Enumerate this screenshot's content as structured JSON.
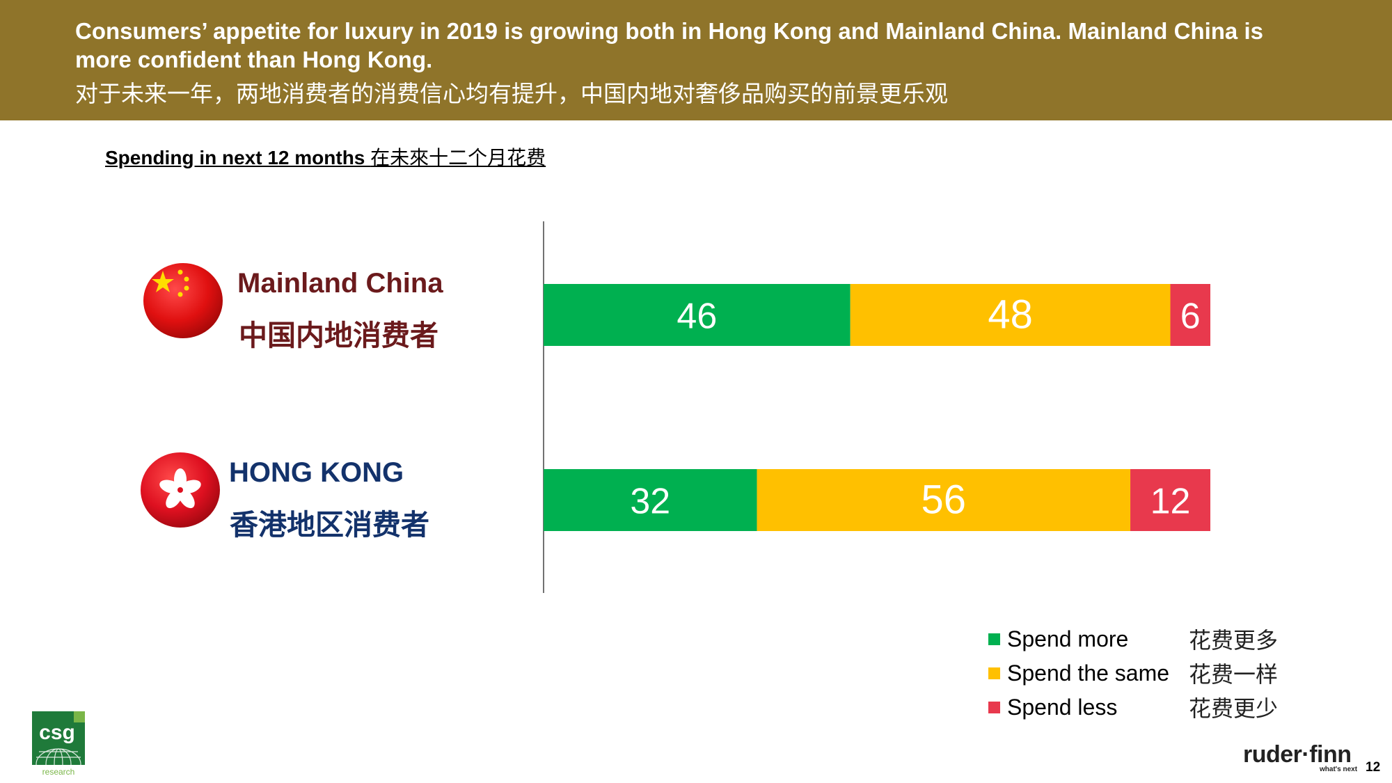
{
  "header": {
    "title_en_line1": "Consumers’ appetite for luxury in 2019 is growing both in Hong Kong and Mainland China. Mainland China is",
    "title_en_line2": "more confident than Hong Kong.",
    "title_zh": "对于未来一年，两地消费者的消费信心均有提升，中国内地对奢侈品购买的前景更乐观"
  },
  "subtitle": {
    "en": "Spending in next 12 months ",
    "zh": "在未來十二个月花费"
  },
  "regions": [
    {
      "en": "Mainland China",
      "zh": "中国内地消费者",
      "flag": "china-flag-icon"
    },
    {
      "en": "HONG KONG",
      "zh": "香港地区消费者",
      "flag": "hong-kong-flag-icon"
    }
  ],
  "chart_data": {
    "type": "bar",
    "orientation": "horizontal",
    "stacked": true,
    "title": "Spending in next 12 months 在未來十二个月花费",
    "categories": [
      "Mainland China",
      "HONG KONG"
    ],
    "series": [
      {
        "name": "Spend more",
        "name_zh": "花费更多",
        "color": "#00b050",
        "values": [
          46,
          32
        ]
      },
      {
        "name": "Spend the same",
        "name_zh": "花费一样",
        "color": "#ffc000",
        "values": [
          48,
          56
        ]
      },
      {
        "name": "Spend less",
        "name_zh": "花费更少",
        "color": "#e8394d",
        "values": [
          6,
          12
        ]
      }
    ],
    "xlim": [
      0,
      100
    ],
    "grid": false,
    "legend_position": "bottom-right"
  },
  "legend": {
    "items": [
      {
        "label": "Spend more",
        "zh": "花费更多",
        "color": "#00b050"
      },
      {
        "label": "Spend the same",
        "zh": "花费一样",
        "color": "#ffc000"
      },
      {
        "label": "Spend less",
        "zh": "花费更少",
        "color": "#e8394d"
      }
    ]
  },
  "footer": {
    "csg_logo_text": "csg",
    "csg_logo_sub": "research",
    "brand": "ruder·finn",
    "brand_tag": "what's next",
    "page_number": "12"
  },
  "colors": {
    "header_bg": "#8f742a",
    "china_red": "#6b1a1c",
    "hk_blue": "#13326b"
  }
}
